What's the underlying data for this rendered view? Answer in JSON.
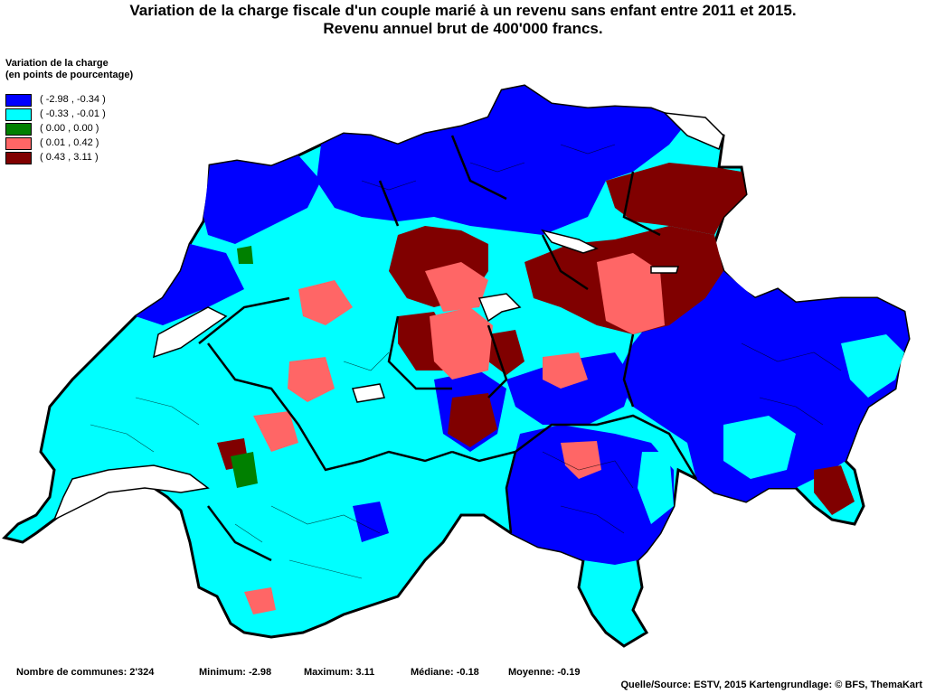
{
  "title": {
    "line1": "Variation de la charge fiscale d'un couple marié à un revenu sans enfant entre 2011 et 2015.",
    "line2": "Revenu annuel brut de 400'000 francs."
  },
  "legend": {
    "title_line1": "Variation de la charge",
    "title_line2": "(en points de pourcentage)",
    "items": [
      {
        "label": "( -2.98 , -0.34 )",
        "color": "#0000ff"
      },
      {
        "label": "( -0.33 , -0.01 )",
        "color": "#00ffff"
      },
      {
        "label": "( 0.00 , 0.00 )",
        "color": "#008000"
      },
      {
        "label": "( 0.01 , 0.42 )",
        "color": "#ff6666"
      },
      {
        "label": "( 0.43 , 3.11 )",
        "color": "#800000"
      }
    ]
  },
  "stats": {
    "communes": "Nombre de communes: 2'324",
    "minimum": "Minimum: -2.98",
    "maximum": "Maximum: 3.11",
    "median": "Médiane: -0.18",
    "mean": "Moyenne: -0.19"
  },
  "source": "Quelle/Source: ESTV, 2015 Kartengrundlage: © BFS, ThemaKart"
}
